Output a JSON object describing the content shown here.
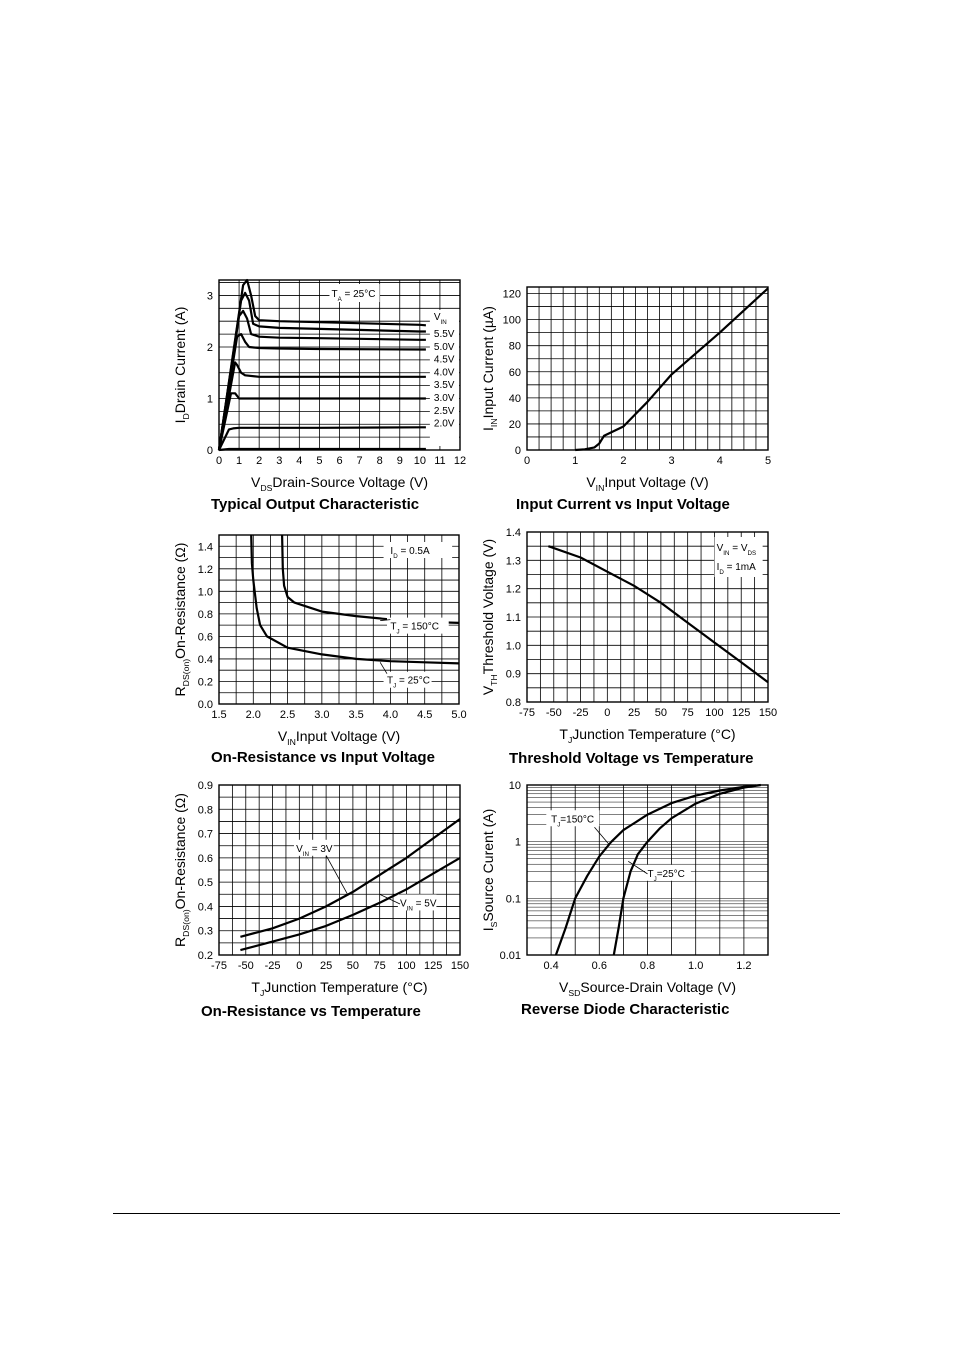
{
  "chart_data": [
    {
      "id": "c1",
      "type": "line",
      "title": "Typical Output Characteristic",
      "ylabel": {
        "main": "I",
        "sub": "D",
        "rest": "Drain Current (A)"
      },
      "xlabel": {
        "main": "V",
        "sub": "DS",
        "rest": "Drain-Source Voltage (V)"
      },
      "xlim": [
        0,
        12
      ],
      "ylim": [
        0,
        3.3
      ],
      "xticks": [
        "0",
        "1",
        "2",
        "3",
        "4",
        "5",
        "6",
        "7",
        "8",
        "9",
        "10",
        "11",
        "12"
      ],
      "yticks": [
        "0",
        "1",
        "2",
        "3"
      ],
      "ytick_values": [
        0,
        1,
        2,
        3
      ],
      "grid": true,
      "annotations": [
        {
          "main": "T",
          "sub": "A",
          "rest": " = 25°C"
        }
      ],
      "legend_title": {
        "main": "V",
        "sub": "IN"
      },
      "series": [
        {
          "name": "5.5V",
          "x": [
            0,
            1.2,
            1.4,
            1.6,
            1.8,
            2,
            3,
            5,
            10,
            10.3
          ],
          "y": [
            0,
            3.2,
            3.3,
            3.0,
            2.6,
            2.52,
            2.5,
            2.48,
            2.43,
            2.42
          ]
        },
        {
          "name": "5.0V",
          "x": [
            0,
            1.1,
            1.3,
            1.5,
            1.7,
            2,
            3,
            5,
            10,
            10.3
          ],
          "y": [
            0,
            2.9,
            3.05,
            2.9,
            2.45,
            2.4,
            2.37,
            2.35,
            2.3,
            2.3
          ]
        },
        {
          "name": "4.5V",
          "x": [
            0,
            1,
            1.2,
            1.4,
            1.6,
            2,
            3,
            5,
            10,
            10.3
          ],
          "y": [
            0,
            2.6,
            2.7,
            2.55,
            2.25,
            2.2,
            2.18,
            2.17,
            2.14,
            2.14
          ]
        },
        {
          "name": "4.0V",
          "x": [
            0,
            0.9,
            1.1,
            1.3,
            1.5,
            2,
            3,
            5,
            10,
            10.3
          ],
          "y": [
            0,
            2.2,
            2.25,
            2.1,
            2.0,
            1.98,
            1.97,
            1.96,
            1.95,
            1.95
          ]
        },
        {
          "name": "3.5V",
          "x": [
            0,
            0.8,
            0.9,
            1.1,
            1.3,
            2,
            3,
            5,
            10,
            10.3
          ],
          "y": [
            0,
            1.7,
            1.65,
            1.5,
            1.45,
            1.42,
            1.42,
            1.42,
            1.42,
            1.42
          ]
        },
        {
          "name": "3.0V",
          "x": [
            0,
            0.6,
            0.8,
            1.0,
            1.2,
            2,
            4,
            10,
            10.3
          ],
          "y": [
            0,
            1.1,
            1.1,
            1.0,
            1.0,
            1.0,
            1.0,
            1.0,
            1.0
          ]
        },
        {
          "name": "2.5V",
          "x": [
            0,
            0.5,
            0.7,
            1.0,
            2,
            5,
            10,
            10.3
          ],
          "y": [
            0,
            0.4,
            0.42,
            0.43,
            0.43,
            0.43,
            0.44,
            0.44
          ]
        },
        {
          "name": "2.0V",
          "x": [
            0,
            0.5,
            1,
            10.3
          ],
          "y": [
            0,
            0.02,
            0.02,
            0.02
          ]
        }
      ],
      "legend_labels": [
        "5.5V",
        "5.0V",
        "4.5V",
        "4.0V",
        "3.5V",
        "3.0V",
        "2.5V",
        "2.0V"
      ]
    },
    {
      "id": "c2",
      "type": "line",
      "title": "Input Current vs Input Voltage",
      "ylabel": {
        "main": "I",
        "sub": "IN",
        "rest": "Input Current (µA)"
      },
      "xlabel": {
        "main": "V",
        "sub": "IN",
        "rest": "Input Voltage (V)"
      },
      "xlim": [
        0,
        5
      ],
      "ylim": [
        0,
        125
      ],
      "xticks": [
        "0",
        "1",
        "2",
        "3",
        "4",
        "5"
      ],
      "yticks": [
        "0",
        "20",
        "40",
        "60",
        "80",
        "100",
        "120"
      ],
      "ytick_values": [
        0,
        20,
        40,
        60,
        80,
        100,
        120
      ],
      "grid": true,
      "series": [
        {
          "name": "",
          "x": [
            1.0,
            1.2,
            1.4,
            1.5,
            1.6,
            2.0,
            2.5,
            3.0,
            4.0,
            5.0
          ],
          "y": [
            0,
            0.5,
            2,
            5,
            11,
            18,
            37,
            58,
            90,
            124
          ]
        }
      ]
    },
    {
      "id": "c3",
      "type": "line",
      "title": "On-Resistance vs Input Voltage",
      "ylabel": {
        "main": "R",
        "sub": "DS(on)",
        "rest": "On-Resistance (Ω)"
      },
      "xlabel": {
        "main": "V",
        "sub": "IN",
        "rest": "Input Voltage (V)"
      },
      "xlim": [
        1.5,
        5.0
      ],
      "ylim": [
        0,
        1.5
      ],
      "xticks": [
        "1.5",
        "2.0",
        "2.5",
        "3.0",
        "3.5",
        "4.0",
        "4.5",
        "5.0"
      ],
      "yticks": [
        "0.0",
        "0.2",
        "0.4",
        "0.6",
        "0.8",
        "1.0",
        "1.2",
        "1.4"
      ],
      "ytick_values": [
        0,
        0.2,
        0.4,
        0.6,
        0.8,
        1.0,
        1.2,
        1.4
      ],
      "grid": true,
      "annotations": [
        {
          "main": "I",
          "sub": "D",
          "rest": " = 0.5A"
        }
      ],
      "series": [
        {
          "name": "T_J = 150°C",
          "x": [
            2.42,
            2.43,
            2.45,
            2.5,
            2.6,
            2.8,
            3.0,
            3.5,
            4.0,
            4.5,
            5.0
          ],
          "y": [
            1.5,
            1.2,
            1.05,
            0.95,
            0.9,
            0.86,
            0.82,
            0.78,
            0.75,
            0.73,
            0.72
          ]
        },
        {
          "name": "T_J = 25°C",
          "x": [
            1.97,
            1.98,
            2.0,
            2.05,
            2.1,
            2.2,
            2.5,
            3.0,
            3.5,
            4.0,
            4.5,
            5.0
          ],
          "y": [
            1.5,
            1.25,
            1.1,
            0.85,
            0.7,
            0.6,
            0.5,
            0.44,
            0.4,
            0.38,
            0.37,
            0.36
          ]
        }
      ],
      "labels": [
        {
          "main": "T",
          "sub": "J",
          "rest": " = 150°C"
        },
        {
          "main": "T",
          "sub": "J",
          "rest": " = 25°C"
        }
      ]
    },
    {
      "id": "c4",
      "type": "line",
      "title": "Threshold Voltage vs Temperature",
      "ylabel": {
        "main": "V",
        "sub": "TH",
        "rest": "Threshold Voltage (V)"
      },
      "xlabel": {
        "main": "T",
        "sub": "J",
        "rest": "Junction Temperature (°C)"
      },
      "xlim": [
        -75,
        150
      ],
      "ylim": [
        0.8,
        1.4
      ],
      "xticks": [
        "-75",
        "-50",
        "-25",
        "0",
        "25",
        "50",
        "75",
        "100",
        "125",
        "150"
      ],
      "yticks": [
        "0.8",
        "0.9",
        "1.0",
        "1.1",
        "1.2",
        "1.3",
        "1.4"
      ],
      "ytick_values": [
        0.8,
        0.9,
        1.0,
        1.1,
        1.2,
        1.3,
        1.4
      ],
      "grid": true,
      "annotations": [
        {
          "main": "V",
          "sub": "IN",
          "rest": " = V",
          "sub2": "DS"
        },
        {
          "main": "I",
          "sub": "D",
          "rest": " = 1mA"
        }
      ],
      "series": [
        {
          "name": "",
          "x": [
            -55,
            -25,
            0,
            25,
            50,
            75,
            100,
            125,
            150
          ],
          "y": [
            1.35,
            1.31,
            1.26,
            1.21,
            1.15,
            1.08,
            1.01,
            0.94,
            0.87
          ]
        }
      ]
    },
    {
      "id": "c5",
      "type": "line",
      "title": "On-Resistance vs Temperature",
      "ylabel": {
        "main": "R",
        "sub": "DS(on)",
        "rest": "On-Resistance (Ω)"
      },
      "xlabel": {
        "main": "T",
        "sub": "J",
        "rest": "Junction Temperature (°C)"
      },
      "xlim": [
        -75,
        150
      ],
      "ylim": [
        0.2,
        0.9
      ],
      "xticks": [
        "-75",
        "-50",
        "-25",
        "0",
        "25",
        "50",
        "75",
        "100",
        "125",
        "150"
      ],
      "yticks": [
        "0.2",
        "0.3",
        "0.4",
        "0.5",
        "0.6",
        "0.7",
        "0.8",
        "0.9"
      ],
      "ytick_values": [
        0.2,
        0.3,
        0.4,
        0.5,
        0.6,
        0.7,
        0.8,
        0.9
      ],
      "grid": true,
      "series": [
        {
          "name": "V_IN = 3V",
          "x": [
            -55,
            -25,
            0,
            25,
            50,
            75,
            100,
            125,
            150
          ],
          "y": [
            0.275,
            0.31,
            0.35,
            0.4,
            0.46,
            0.53,
            0.6,
            0.68,
            0.76
          ]
        },
        {
          "name": "V_IN = 5V",
          "x": [
            -55,
            -25,
            0,
            25,
            50,
            75,
            100,
            125,
            150
          ],
          "y": [
            0.22,
            0.255,
            0.285,
            0.32,
            0.365,
            0.415,
            0.47,
            0.535,
            0.6
          ]
        }
      ],
      "labels": [
        {
          "main": "V",
          "sub": "IN",
          "rest": " = 3V"
        },
        {
          "main": "V",
          "sub": "IN",
          "rest": " = 5V"
        }
      ]
    },
    {
      "id": "c6",
      "type": "line",
      "title": "Reverse Diode Characteristic",
      "ylabel": {
        "main": "I",
        "sub": "S",
        "rest": "Source Curent (A)"
      },
      "xlabel": {
        "main": "V",
        "sub": "SD",
        "rest": "Source-Drain Voltage (V)"
      },
      "xlim": [
        0.3,
        1.3
      ],
      "ylim": [
        0.01,
        10
      ],
      "yscale": "log",
      "xticks": [
        "0.4",
        "0.6",
        "0.8",
        "1.0",
        "1.2"
      ],
      "xtick_values": [
        0.4,
        0.6,
        0.8,
        1.0,
        1.2
      ],
      "yticks": [
        "0.01",
        "0.1",
        "1",
        "10"
      ],
      "ytick_values": [
        0.01,
        0.1,
        1,
        10
      ],
      "grid": true,
      "series": [
        {
          "name": "T_J=150°C",
          "x": [
            0.42,
            0.46,
            0.5,
            0.55,
            0.6,
            0.65,
            0.7,
            0.8,
            0.9,
            1.0,
            1.1,
            1.2,
            1.25
          ],
          "y": [
            0.01,
            0.03,
            0.1,
            0.25,
            0.55,
            1.0,
            1.6,
            3.0,
            4.8,
            6.5,
            8.0,
            9.3,
            9.8
          ]
        },
        {
          "name": "T_J=25°C",
          "x": [
            0.66,
            0.68,
            0.7,
            0.73,
            0.76,
            0.8,
            0.85,
            0.9,
            1.0,
            1.1,
            1.2,
            1.27
          ],
          "y": [
            0.01,
            0.03,
            0.1,
            0.3,
            0.6,
            1.0,
            1.7,
            2.6,
            4.7,
            7.0,
            9.0,
            10
          ]
        }
      ],
      "labels": [
        {
          "main": "T",
          "sub": "J",
          "rest": "=150°C"
        },
        {
          "main": "T",
          "sub": "J",
          "rest": "=25°C"
        }
      ]
    }
  ]
}
